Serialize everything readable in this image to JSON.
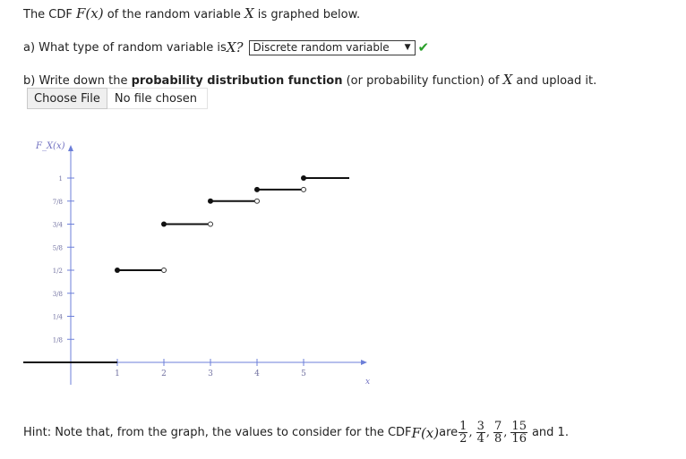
{
  "intro": {
    "prefix": "The CDF ",
    "func": "F(x)",
    "mid": " of the random variable ",
    "var": "X",
    "suffix": " is graphed below."
  },
  "part_a": {
    "text": "a) What type of random variable is ",
    "var": "X",
    "q": "?",
    "select_value": "Discrete random variable",
    "status_icon": "check-icon",
    "status_color": "#2aa02a"
  },
  "part_b": {
    "prefix": "b) Write down the ",
    "bold": "probability distribution function",
    "mid": " (or probability function) of ",
    "var": "X",
    "suffix": " and upload it.",
    "file_button": "Choose File",
    "file_status": "No file chosen"
  },
  "chart_data": {
    "type": "line",
    "title": "",
    "ylabel": "F_X(x)",
    "xlabel": "x",
    "x_ticks": [
      "1",
      "2",
      "3",
      "4",
      "5"
    ],
    "y_ticks": [
      "1/8",
      "1/4",
      "3/8",
      "1/2",
      "5/8",
      "3/4",
      "7/8",
      "1"
    ],
    "xlim": [
      -2,
      6
    ],
    "ylim": [
      0,
      1
    ],
    "steps": [
      {
        "x_start": -2,
        "x_end": 1,
        "y": 0,
        "open_end": false
      },
      {
        "x_start": 1,
        "x_end": 2,
        "y": 0.5,
        "open_end": true
      },
      {
        "x_start": 2,
        "x_end": 3,
        "y": 0.75,
        "open_end": true
      },
      {
        "x_start": 3,
        "x_end": 4,
        "y": 0.875,
        "open_end": true
      },
      {
        "x_start": 4,
        "x_end": 5,
        "y": 0.9375,
        "open_end": true
      },
      {
        "x_start": 5,
        "x_end": 6,
        "y": 1,
        "open_end": false
      }
    ]
  },
  "hint": {
    "prefix": "Hint: Note that, from the graph, the values to consider for the CDF ",
    "func": "F(x)",
    "mid": " are ",
    "fractions": [
      {
        "num": "1",
        "den": "2"
      },
      {
        "num": "3",
        "den": "4"
      },
      {
        "num": "7",
        "den": "8"
      },
      {
        "num": "15",
        "den": "16"
      }
    ],
    "suffix": " and 1."
  }
}
